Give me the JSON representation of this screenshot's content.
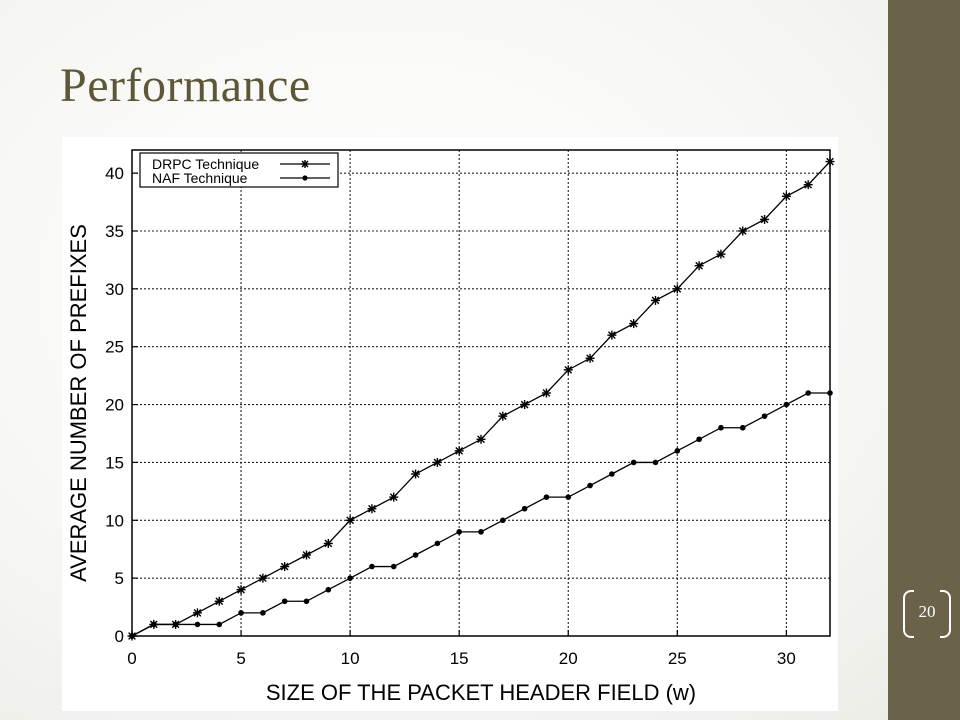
{
  "slide": {
    "title": "Performance",
    "page_number": "20",
    "colors": {
      "sidebar": "#6b624a",
      "title": "#5d5637",
      "background": "#f4f4f1"
    }
  },
  "chart_data": {
    "type": "line",
    "title": "",
    "xlabel": "SIZE OF THE PACKET HEADER FIELD (w)",
    "ylabel": "AVERAGE NUMBER OF PREFIXES",
    "xlim": [
      0,
      32
    ],
    "ylim": [
      0,
      42
    ],
    "xticks": [
      0,
      5,
      10,
      15,
      20,
      25,
      30
    ],
    "yticks": [
      0,
      5,
      10,
      15,
      20,
      25,
      30,
      35,
      40
    ],
    "grid": true,
    "legend_position": "top-left",
    "x": [
      0,
      1,
      2,
      3,
      4,
      5,
      6,
      7,
      8,
      9,
      10,
      11,
      12,
      13,
      14,
      15,
      16,
      17,
      18,
      19,
      20,
      21,
      22,
      23,
      24,
      25,
      26,
      27,
      28,
      29,
      30,
      31,
      32
    ],
    "series": [
      {
        "name": "DRPC Technique",
        "marker": "asterisk",
        "values": [
          0,
          1,
          1,
          2,
          3,
          4,
          5,
          6,
          7,
          8,
          10,
          11,
          12,
          14,
          15,
          16,
          17,
          19,
          20,
          21,
          23,
          24,
          26,
          27,
          29,
          30,
          32,
          33,
          35,
          36,
          38,
          39,
          41
        ]
      },
      {
        "name": "NAF Technique",
        "marker": "dot",
        "values": [
          0,
          1,
          1,
          1,
          1,
          2,
          2,
          3,
          3,
          4,
          5,
          6,
          6,
          7,
          8,
          9,
          9,
          10,
          11,
          12,
          12,
          13,
          14,
          15,
          15,
          16,
          17,
          18,
          18,
          19,
          20,
          21,
          21
        ]
      }
    ]
  }
}
